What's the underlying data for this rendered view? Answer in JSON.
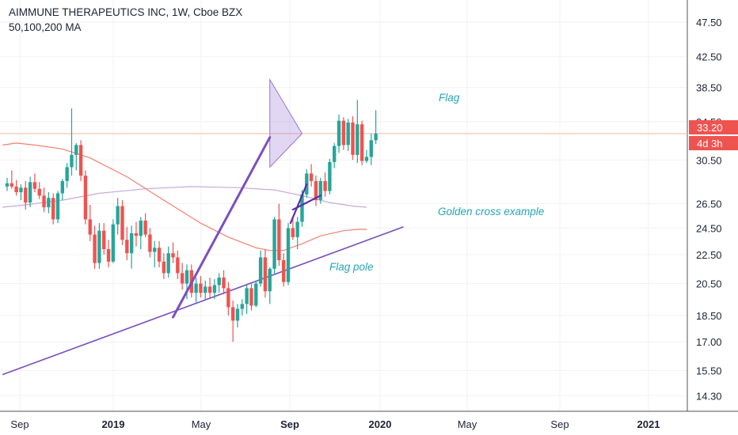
{
  "header": {
    "title": "AIMMUNE THERAPEUTICS INC, 1W, Cboe BZX",
    "indicator": "50,100,200 MA"
  },
  "price_tags": {
    "last": "33.20",
    "countdown": "4d 3h"
  },
  "annotations": {
    "flag": "Flag",
    "golden_cross": "Golden cross example",
    "flag_pole": "Flag pole"
  },
  "colors": {
    "up": "#26a69a",
    "down": "#ef5350",
    "ma_fast": "#f08070",
    "ma_slow": "#c8a8dc",
    "trendline": "#7b4fbf",
    "price_line": "#f5c7b3",
    "annotation_text": "#26a6b4"
  },
  "chart_data": {
    "type": "candlestick",
    "y_scale": "log",
    "ylim": [
      13.6,
      51.0
    ],
    "y_ticks": [
      47.5,
      42.5,
      38.5,
      34.5,
      30.5,
      26.5,
      24.5,
      22.5,
      20.5,
      18.5,
      17.0,
      15.5,
      14.3
    ],
    "x_ticks": [
      {
        "label": "Sep",
        "bold": false
      },
      {
        "label": "2019",
        "bold": true
      },
      {
        "label": "May",
        "bold": false
      },
      {
        "label": "Sep",
        "bold": true
      },
      {
        "label": "2020",
        "bold": true
      },
      {
        "label": "May",
        "bold": false
      },
      {
        "label": "Sep",
        "bold": false
      },
      {
        "label": "2021",
        "bold": true
      }
    ],
    "last_price": 33.2,
    "candles": [
      [
        28.0,
        28.8,
        27.6,
        28.3
      ],
      [
        28.3,
        29.5,
        27.8,
        28.0
      ],
      [
        28.0,
        28.6,
        27.2,
        27.5
      ],
      [
        27.5,
        28.2,
        26.8,
        27.9
      ],
      [
        27.9,
        28.5,
        26.0,
        26.6
      ],
      [
        26.6,
        28.9,
        26.2,
        28.4
      ],
      [
        28.4,
        29.2,
        27.5,
        27.8
      ],
      [
        27.8,
        28.4,
        26.9,
        27.2
      ],
      [
        27.2,
        27.9,
        25.8,
        26.2
      ],
      [
        26.2,
        27.5,
        25.7,
        27.0
      ],
      [
        27.0,
        27.4,
        24.8,
        25.2
      ],
      [
        25.2,
        27.6,
        24.9,
        27.4
      ],
      [
        27.4,
        28.7,
        26.8,
        28.5
      ],
      [
        28.5,
        30.2,
        27.9,
        29.8
      ],
      [
        29.8,
        36.0,
        29.0,
        31.0
      ],
      [
        31.0,
        32.2,
        29.5,
        32.0
      ],
      [
        32.0,
        32.5,
        28.5,
        29.0
      ],
      [
        29.0,
        29.5,
        24.8,
        25.2
      ],
      [
        25.2,
        26.4,
        23.5,
        24.0
      ],
      [
        24.0,
        24.7,
        21.5,
        21.9
      ],
      [
        21.9,
        24.9,
        21.5,
        24.3
      ],
      [
        24.3,
        24.9,
        22.5,
        22.9
      ],
      [
        22.9,
        23.6,
        21.6,
        22.0
      ],
      [
        22.0,
        25.2,
        21.9,
        24.8
      ],
      [
        24.8,
        27.0,
        24.0,
        26.3
      ],
      [
        26.3,
        26.8,
        23.2,
        23.6
      ],
      [
        23.6,
        24.6,
        22.1,
        22.6
      ],
      [
        22.6,
        24.7,
        21.5,
        24.1
      ],
      [
        24.1,
        25.0,
        23.1,
        23.9
      ],
      [
        23.9,
        25.4,
        22.9,
        25.1
      ],
      [
        25.1,
        25.7,
        23.8,
        24.0
      ],
      [
        24.0,
        24.5,
        22.3,
        22.7
      ],
      [
        22.7,
        23.5,
        21.6,
        23.0
      ],
      [
        23.0,
        23.5,
        21.6,
        22.0
      ],
      [
        22.0,
        22.6,
        20.8,
        21.2
      ],
      [
        21.2,
        23.1,
        20.9,
        22.6
      ],
      [
        22.6,
        23.4,
        21.9,
        22.3
      ],
      [
        22.3,
        22.8,
        20.8,
        21.2
      ],
      [
        21.2,
        21.9,
        20.1,
        20.5
      ],
      [
        20.5,
        21.8,
        19.5,
        21.4
      ],
      [
        21.4,
        21.8,
        19.6,
        19.9
      ],
      [
        19.9,
        20.9,
        19.3,
        20.5
      ],
      [
        20.5,
        21.0,
        19.6,
        19.9
      ],
      [
        19.9,
        20.7,
        19.5,
        20.3
      ],
      [
        20.3,
        20.9,
        19.6,
        19.9
      ],
      [
        19.9,
        20.8,
        19.5,
        20.4
      ],
      [
        20.4,
        21.2,
        19.9,
        20.9
      ],
      [
        20.9,
        21.4,
        19.8,
        20.2
      ],
      [
        20.2,
        20.6,
        18.5,
        19.0
      ],
      [
        19.0,
        19.4,
        17.0,
        18.2
      ],
      [
        18.2,
        19.2,
        17.8,
        18.9
      ],
      [
        18.9,
        19.5,
        18.5,
        19.2
      ],
      [
        19.2,
        20.4,
        18.6,
        20.2
      ],
      [
        20.2,
        20.6,
        18.8,
        19.1
      ],
      [
        19.1,
        20.7,
        19.0,
        20.5
      ],
      [
        20.5,
        22.8,
        20.3,
        22.3
      ],
      [
        22.3,
        22.9,
        19.6,
        20.0
      ],
      [
        20.0,
        21.6,
        19.2,
        21.5
      ],
      [
        21.5,
        25.4,
        21.1,
        25.2
      ],
      [
        25.2,
        26.5,
        21.7,
        22.1
      ],
      [
        22.1,
        22.6,
        20.3,
        20.6
      ],
      [
        20.6,
        24.9,
        20.4,
        24.5
      ],
      [
        24.5,
        25.3,
        23.6,
        23.8
      ],
      [
        23.8,
        25.4,
        22.9,
        25.0
      ],
      [
        25.0,
        27.7,
        24.6,
        27.3
      ],
      [
        27.3,
        29.6,
        27.0,
        29.2
      ],
      [
        29.2,
        30.1,
        28.0,
        28.5
      ],
      [
        28.5,
        29.0,
        26.3,
        26.8
      ],
      [
        26.8,
        28.8,
        26.5,
        28.5
      ],
      [
        28.5,
        29.3,
        27.1,
        27.6
      ],
      [
        27.6,
        30.6,
        27.3,
        30.3
      ],
      [
        30.3,
        32.2,
        29.7,
        31.9
      ],
      [
        31.9,
        35.3,
        31.2,
        34.6
      ],
      [
        34.6,
        35.0,
        31.5,
        32.0
      ],
      [
        32.0,
        34.8,
        31.4,
        34.4
      ],
      [
        34.4,
        35.1,
        30.5,
        31.0
      ],
      [
        31.0,
        37.0,
        30.2,
        34.2
      ],
      [
        34.2,
        34.6,
        30.0,
        30.4
      ],
      [
        30.4,
        31.5,
        30.2,
        30.8
      ],
      [
        30.8,
        33.2,
        30.0,
        32.5
      ],
      [
        32.5,
        35.8,
        32.1,
        33.2
      ]
    ],
    "ma_fast": [
      [
        -1,
        32.0
      ],
      [
        2,
        32.2
      ],
      [
        6,
        32.0
      ],
      [
        12,
        31.6
      ],
      [
        18,
        30.7
      ],
      [
        26,
        28.9
      ],
      [
        34,
        26.8
      ],
      [
        42,
        24.9
      ],
      [
        48,
        23.8
      ],
      [
        54,
        23.0
      ],
      [
        57,
        22.8
      ],
      [
        60,
        22.8
      ],
      [
        64,
        23.3
      ],
      [
        68,
        23.9
      ],
      [
        73,
        24.3
      ],
      [
        76,
        24.4
      ],
      [
        78,
        24.4
      ]
    ],
    "ma_slow": [
      [
        -1,
        26.2
      ],
      [
        4,
        26.4
      ],
      [
        12,
        26.8
      ],
      [
        20,
        27.4
      ],
      [
        30,
        27.8
      ],
      [
        40,
        28.0
      ],
      [
        50,
        27.9
      ],
      [
        58,
        27.7
      ],
      [
        64,
        27.2
      ],
      [
        70,
        26.6
      ],
      [
        75,
        26.3
      ],
      [
        78,
        26.2
      ]
    ],
    "trendline": [
      [
        -1,
        15.3
      ],
      [
        86,
        24.6
      ]
    ],
    "flag_pole": [
      [
        36,
        18.4
      ],
      [
        57,
        32.8
      ]
    ],
    "golden_cross_marks": [
      [
        [
          61.5,
          24.9
        ],
        [
          65,
          28.2
        ]
      ],
      [
        [
          62,
          26.0
        ],
        [
          68,
          27.2
        ]
      ]
    ],
    "flag_triangle": [
      [
        57,
        39.5
      ],
      [
        57,
        29.8
      ],
      [
        64,
        33.2
      ]
    ]
  }
}
